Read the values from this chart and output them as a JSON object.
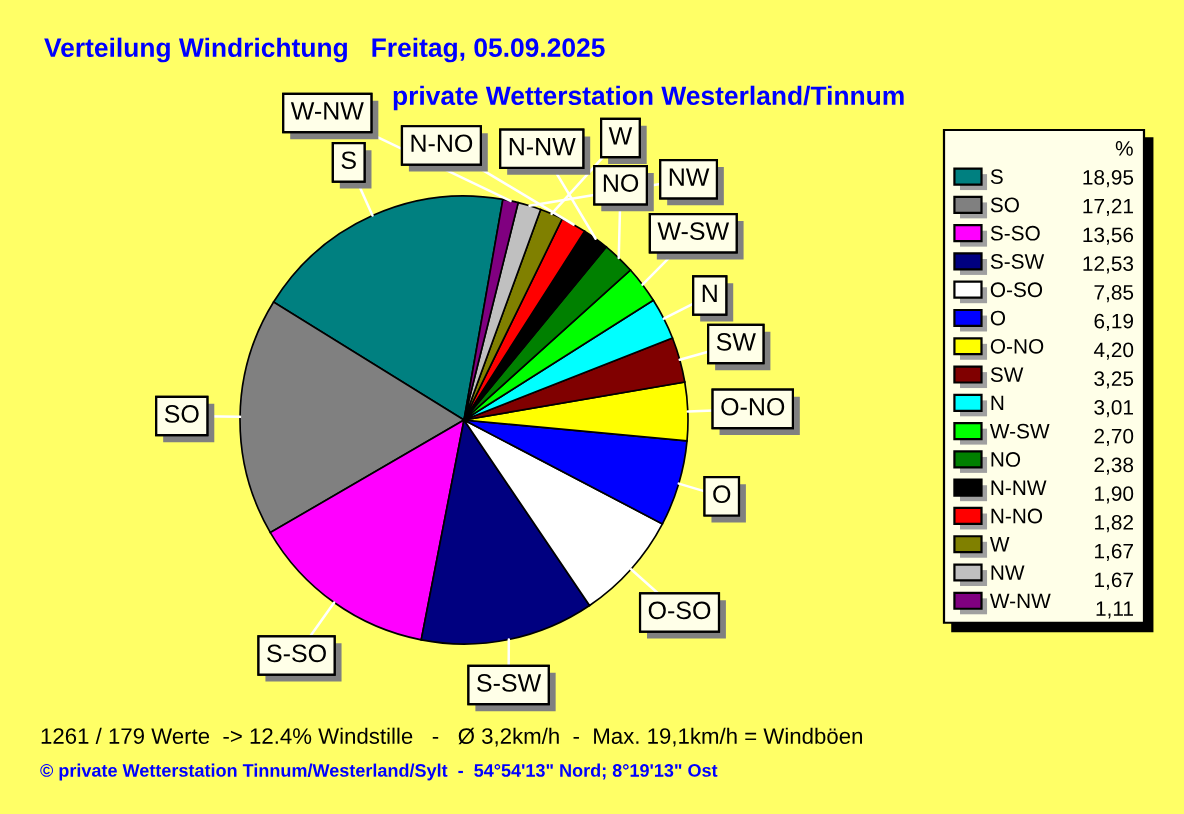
{
  "chart_data": {
    "type": "pie",
    "title": "Verteilung Windrichtung   Freitag, 05.09.2025",
    "subtitle": "private Wetterstation Westerland/Tinnum",
    "legend_title": "%",
    "categories": [
      "S",
      "SO",
      "S-SO",
      "S-SW",
      "O-SO",
      "O",
      "O-NO",
      "SW",
      "N",
      "W-SW",
      "NO",
      "N-NW",
      "N-NO",
      "W",
      "NW",
      "W-NW"
    ],
    "values": [
      18.95,
      17.21,
      13.56,
      12.53,
      7.85,
      6.19,
      4.2,
      3.25,
      3.01,
      2.7,
      2.38,
      1.9,
      1.82,
      1.67,
      1.67,
      1.11
    ],
    "value_labels": [
      "18,95",
      "17,21",
      "13,56",
      "12,53",
      "7,85",
      "6,19",
      "4,20",
      "3,25",
      "3,01",
      "2,70",
      "2,38",
      "1,90",
      "1,82",
      "1,67",
      "1,67",
      "1,11"
    ],
    "colors": [
      "#008080",
      "#808080",
      "#ff00ff",
      "#000080",
      "#ffffff",
      "#0000ff",
      "#ffff00",
      "#800000",
      "#00ffff",
      "#00ff00",
      "#008000",
      "#000000",
      "#ff0000",
      "#808000",
      "#c0c0c0",
      "#800080"
    ],
    "legend": "right",
    "annotations": [
      "1261 / 179 Werte  -> 12.4% Windstille   -   Ø 3,2km/h  -  Max. 19,1km/h = Windböen",
      "© private Wetterstation Tinnum/Westerland/Sylt  -  54°54'13\" Nord; 8°19'13\" Ost"
    ]
  }
}
